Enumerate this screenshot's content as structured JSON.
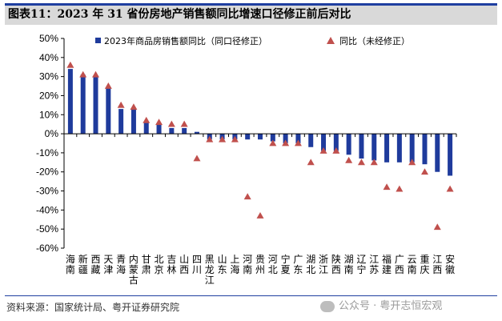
{
  "title": "图表11：2023 年 31 省份房地产销售额同比增速口径修正前后对比",
  "source": "资料来源：国家统计局、粤开证券研究院",
  "watermark": "公众号 · 粤开志恒宏观",
  "colors": {
    "bar": "#1f3b9c",
    "marker": "#c0504d",
    "title_bg": "#d9d9d9",
    "rule": "#1f3fa0"
  },
  "chart_data": {
    "type": "bar",
    "ylim": [
      -60,
      50
    ],
    "yticks": [
      "50%",
      "40%",
      "30%",
      "20%",
      "10%",
      "0%",
      "-10%",
      "-20%",
      "-30%",
      "-40%",
      "-50%",
      "-60%"
    ],
    "legend_position": "top",
    "categories": [
      "海南",
      "新疆",
      "西藏",
      "天津",
      "青海",
      "内蒙古",
      "甘肃",
      "北京",
      "吉林",
      "山西",
      "四川",
      "黑龙江",
      "山东",
      "上海",
      "河南",
      "贵州",
      "河北",
      "宁夏",
      "广东",
      "湖北",
      "浙江",
      "陕西",
      "湖南",
      "辽宁",
      "江苏",
      "福建",
      "广西",
      "云南",
      "重庆",
      "江西",
      "安徽"
    ],
    "series": [
      {
        "name": "2023年商品房销售额同比（同口径修正）",
        "type": "bar",
        "values": [
          34,
          31,
          30,
          24,
          13,
          13,
          6,
          5,
          3,
          3,
          1,
          -3,
          -3,
          -3,
          -3,
          -3,
          -4,
          -5,
          -5,
          -7,
          -9,
          -9,
          -11,
          -13,
          -14,
          -15,
          -15,
          -15,
          -16,
          -20,
          -22
        ]
      },
      {
        "name": "同比（未经修正）",
        "type": "marker",
        "values": [
          36,
          31,
          31,
          25,
          15,
          14,
          7,
          6,
          5,
          5,
          -13,
          -3,
          -3,
          -3,
          -33,
          -43,
          -5,
          -5,
          -5,
          -15,
          -9,
          -9,
          -14,
          -15,
          -15,
          -28,
          -29,
          -15,
          -20,
          -49,
          -29
        ]
      }
    ]
  }
}
